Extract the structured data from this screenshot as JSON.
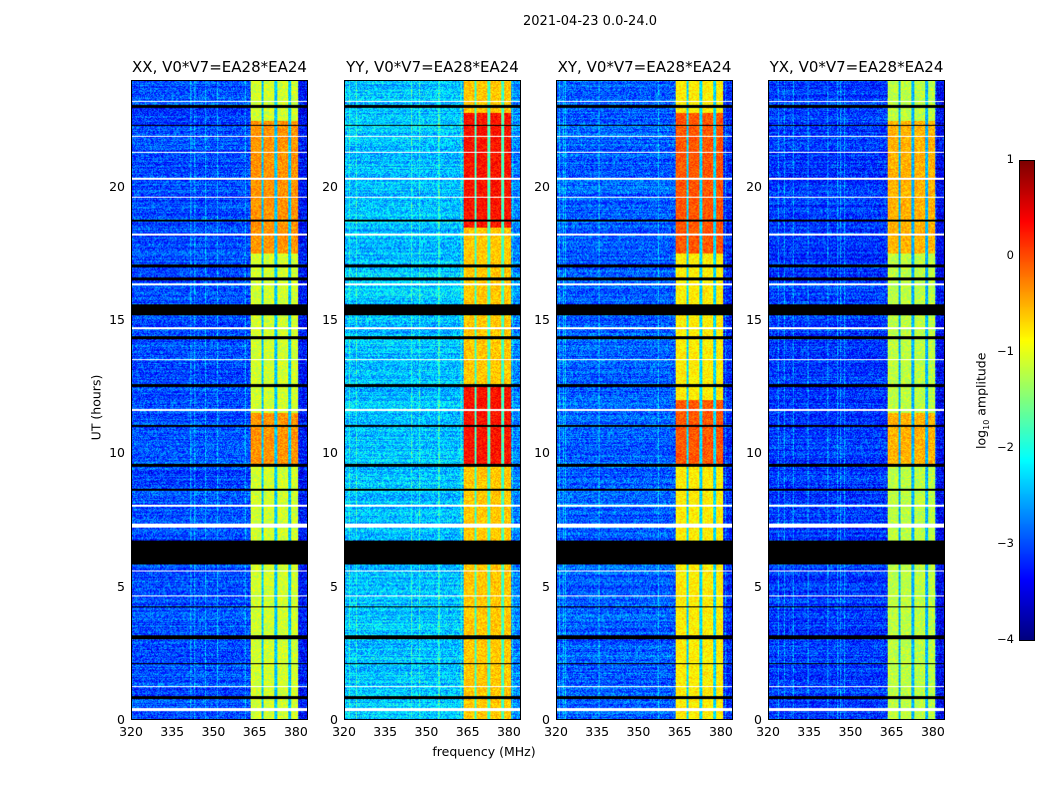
{
  "chart_data": {
    "type": "heatmap",
    "suptitle": "2021-04-23 0.0-24.0",
    "xlabel": "frequency (MHz)",
    "ylabel": "UT (hours)",
    "xlim": [
      320,
      384.4
    ],
    "ylim": [
      0,
      24
    ],
    "xticks": [
      "320",
      "335",
      "350",
      "365",
      "380"
    ],
    "xtick_values": [
      320,
      335,
      350,
      365,
      380
    ],
    "yticks": [
      "0",
      "5",
      "10",
      "15",
      "20"
    ],
    "ytick_values": [
      0,
      5,
      10,
      15,
      20
    ],
    "colorbar": {
      "label_prefix": "log",
      "label_sub": "10",
      "label_suffix": " amplitude",
      "colormap": "jet",
      "range": [
        -4,
        1
      ],
      "ticks": [
        "1",
        "0",
        "−1",
        "−2",
        "−3",
        "−4"
      ],
      "tick_values": [
        1,
        0,
        -1,
        -2,
        -3,
        -4
      ]
    },
    "band_edges_mhz": [
      363.5,
      381
    ],
    "band_gaps_mhz": [
      368,
      373,
      378
    ],
    "flagged_black_hours": [
      [
        15.2,
        15.6
      ],
      [
        5.8,
        6.7
      ],
      [
        3.0,
        3.15
      ],
      [
        0.75,
        0.85
      ],
      [
        23.0,
        23.1
      ],
      [
        22.3,
        22.35
      ],
      [
        18.7,
        18.8
      ],
      [
        17.0,
        17.1
      ],
      [
        16.5,
        16.6
      ],
      [
        12.5,
        12.6
      ],
      [
        9.5,
        9.6
      ],
      [
        8.6,
        8.65
      ],
      [
        4.2,
        4.25
      ],
      [
        2.05,
        2.1
      ],
      [
        14.3,
        14.4
      ],
      [
        11.0,
        11.05
      ]
    ],
    "flagged_white_hours": [
      [
        14.65,
        14.75
      ],
      [
        7.2,
        7.35
      ],
      [
        0.3,
        0.4
      ],
      [
        23.2,
        23.25
      ],
      [
        21.9,
        21.95
      ],
      [
        21.3,
        21.35
      ],
      [
        20.3,
        20.35
      ],
      [
        19.6,
        19.65
      ],
      [
        18.2,
        18.25
      ],
      [
        16.3,
        16.4
      ],
      [
        13.5,
        13.55
      ],
      [
        11.6,
        11.65
      ],
      [
        8.0,
        8.05
      ],
      [
        5.55,
        5.6
      ],
      [
        4.6,
        4.65
      ],
      [
        1.2,
        1.25
      ]
    ],
    "panels": [
      {
        "title": "XX, V0*V7=EA28*EA24",
        "background_log_amp": -3.0,
        "band_log_amp": -1.1,
        "band_peak_log_amp": -0.35,
        "peak_hours": [
          [
            17.5,
            22.5
          ],
          [
            9.5,
            11.5
          ]
        ]
      },
      {
        "title": "YY, V0*V7=EA28*EA24",
        "background_log_amp": -2.4,
        "band_log_amp": -0.6,
        "band_peak_log_amp": 0.3,
        "peak_hours": [
          [
            18.5,
            22.8
          ],
          [
            9.5,
            12.5
          ]
        ]
      },
      {
        "title": "XY, V0*V7=EA28*EA24",
        "background_log_amp": -2.9,
        "band_log_amp": -0.8,
        "band_peak_log_amp": -0.05,
        "peak_hours": [
          [
            17.5,
            22.8
          ],
          [
            9.5,
            12
          ]
        ]
      },
      {
        "title": "YX, V0*V7=EA28*EA24",
        "background_log_amp": -3.1,
        "band_log_amp": -1.2,
        "band_peak_log_amp": -0.5,
        "peak_hours": [
          [
            17.5,
            22.5
          ],
          [
            9.5,
            11.5
          ]
        ]
      }
    ]
  }
}
